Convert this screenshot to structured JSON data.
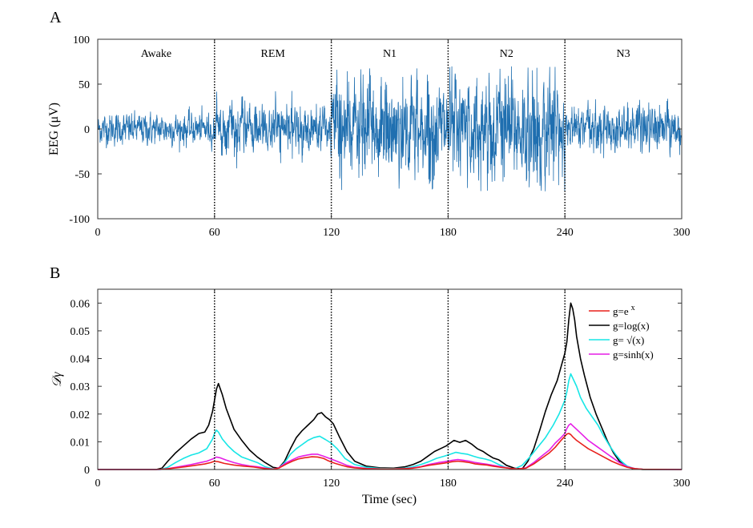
{
  "chart_data": [
    {
      "panel": "A",
      "type": "line",
      "title": "",
      "xlabel": "",
      "ylabel": "EEG (μV)",
      "xlim": [
        0,
        300
      ],
      "ylim": [
        -100,
        100
      ],
      "xticks": [
        0,
        60,
        120,
        180,
        240,
        300
      ],
      "yticks": [
        -100,
        -50,
        0,
        50,
        100
      ],
      "xtick_labels": [
        "0",
        "60",
        "120",
        "180",
        "240",
        "300"
      ],
      "ytick_labels": [
        "-100",
        "-50",
        "0",
        "50",
        "100"
      ],
      "vlines": [
        60,
        120,
        180,
        240
      ],
      "stage_labels": [
        {
          "text": "Awake",
          "x": 30
        },
        {
          "text": "REM",
          "x": 90
        },
        {
          "text": "N1",
          "x": 150
        },
        {
          "text": "N2",
          "x": 210
        },
        {
          "text": "N3",
          "x": 270
        }
      ],
      "series": [
        {
          "name": "EEG",
          "color": "#1f6fb0",
          "segments": [
            {
              "stage": "Awake",
              "x_range": [
                0,
                60
              ],
              "typical_amplitude": 8,
              "peak": 30
            },
            {
              "stage": "REM",
              "x_range": [
                60,
                120
              ],
              "typical_amplitude": 12,
              "peak": 50
            },
            {
              "stage": "N1",
              "x_range": [
                120,
                180
              ],
              "typical_amplitude": 25,
              "peak": 70
            },
            {
              "stage": "N2",
              "x_range": [
                180,
                240
              ],
              "typical_amplitude": 28,
              "peak": 70
            },
            {
              "stage": "N3",
              "x_range": [
                240,
                300
              ],
              "typical_amplitude": 12,
              "peak": 35
            }
          ]
        }
      ]
    },
    {
      "panel": "B",
      "type": "line",
      "title": "",
      "xlabel": "Time (sec)",
      "ylabel": "𝒟γ",
      "xlim": [
        0,
        300
      ],
      "ylim": [
        0,
        0.065
      ],
      "xticks": [
        0,
        60,
        120,
        180,
        240,
        300
      ],
      "yticks": [
        0,
        0.01,
        0.02,
        0.03,
        0.04,
        0.05,
        0.06
      ],
      "xtick_labels": [
        "0",
        "60",
        "120",
        "180",
        "240",
        "300"
      ],
      "ytick_labels": [
        "0",
        "0.01",
        "0.02",
        "0.03",
        "0.04",
        "0.05",
        "0.06"
      ],
      "vlines": [
        60,
        120,
        180,
        240
      ],
      "legend": "top-right",
      "series": [
        {
          "name": "g=e^x",
          "legend_main": "g=e",
          "legend_sup": "x",
          "color": "#e8201c",
          "x": [
            0,
            30,
            35,
            40,
            45,
            50,
            55,
            58,
            60,
            62,
            65,
            70,
            75,
            80,
            85,
            90,
            93,
            97,
            100,
            103,
            106,
            110,
            113,
            116,
            118,
            120,
            122,
            125,
            128,
            132,
            138,
            145,
            152,
            158,
            162,
            165,
            170,
            175,
            178,
            182,
            185,
            188,
            191,
            194,
            197,
            200,
            203,
            207,
            212,
            216,
            220,
            224,
            228,
            232,
            235,
            238,
            240,
            241,
            242,
            243,
            244,
            246,
            249,
            252,
            256,
            260,
            264,
            268,
            272,
            276,
            280,
            300
          ],
          "y": [
            0,
            0,
            0.0002,
            0.0006,
            0.001,
            0.0015,
            0.002,
            0.0025,
            0.003,
            0.0028,
            0.0022,
            0.0016,
            0.0012,
            0.0009,
            0.0004,
            0.0001,
            0.0005,
            0.002,
            0.003,
            0.0038,
            0.0042,
            0.0046,
            0.0045,
            0.004,
            0.0033,
            0.0027,
            0.0022,
            0.0016,
            0.001,
            0.0006,
            0.0003,
            0.0002,
            0.0002,
            0.0003,
            0.0005,
            0.0008,
            0.0015,
            0.002,
            0.0023,
            0.0028,
            0.003,
            0.0028,
            0.0025,
            0.002,
            0.0018,
            0.0016,
            0.0012,
            0.0008,
            0.0004,
            0.0002,
            0.0005,
            0.002,
            0.004,
            0.006,
            0.008,
            0.0105,
            0.012,
            0.0128,
            0.013,
            0.0126,
            0.0118,
            0.0105,
            0.009,
            0.0075,
            0.006,
            0.0045,
            0.003,
            0.0018,
            0.0008,
            0.0003,
            0.0001,
            0
          ]
        },
        {
          "name": "g=log(x)",
          "legend_main": "g=log(x)",
          "legend_sup": "",
          "color": "#000000",
          "x": [
            0,
            30,
            33,
            36,
            40,
            44,
            48,
            52,
            55,
            57,
            59,
            60,
            61,
            62,
            64,
            66,
            70,
            74,
            78,
            82,
            86,
            90,
            93,
            96,
            99,
            102,
            105,
            108,
            111,
            113,
            115,
            117,
            119,
            121,
            124,
            128,
            132,
            138,
            145,
            152,
            158,
            162,
            166,
            170,
            173,
            176,
            179,
            181,
            183,
            186,
            189,
            192,
            195,
            198,
            200,
            203,
            206,
            210,
            214,
            218,
            221,
            224,
            227,
            230,
            233,
            236,
            238,
            240,
            241,
            242,
            243,
            244,
            245,
            246,
            248,
            250,
            253,
            256,
            259,
            262,
            265,
            268,
            271,
            275,
            280,
            300
          ],
          "y": [
            0,
            0,
            0.0005,
            0.003,
            0.006,
            0.0085,
            0.011,
            0.013,
            0.0135,
            0.016,
            0.021,
            0.025,
            0.029,
            0.031,
            0.027,
            0.022,
            0.0145,
            0.0105,
            0.007,
            0.0045,
            0.0025,
            0.0008,
            0.0005,
            0.003,
            0.0075,
            0.0115,
            0.014,
            0.016,
            0.018,
            0.02,
            0.0205,
            0.019,
            0.018,
            0.0165,
            0.012,
            0.0065,
            0.003,
            0.0012,
            0.0006,
            0.0005,
            0.001,
            0.0018,
            0.003,
            0.005,
            0.0065,
            0.0075,
            0.0085,
            0.0095,
            0.0105,
            0.0098,
            0.0105,
            0.0092,
            0.0075,
            0.0065,
            0.0055,
            0.0042,
            0.0035,
            0.0015,
            0.0005,
            0.0002,
            0.003,
            0.0075,
            0.014,
            0.021,
            0.027,
            0.032,
            0.037,
            0.042,
            0.046,
            0.054,
            0.06,
            0.058,
            0.054,
            0.048,
            0.04,
            0.034,
            0.026,
            0.02,
            0.015,
            0.01,
            0.006,
            0.003,
            0.0012,
            0.0003,
            0,
            0
          ]
        },
        {
          "name": "g= √(x)",
          "legend_main": "g= √(x)",
          "legend_sup": "",
          "color": "#17e6e6",
          "x": [
            0,
            32,
            36,
            40,
            44,
            48,
            52,
            56,
            59,
            60,
            61,
            62,
            64,
            67,
            70,
            74,
            78,
            82,
            86,
            90,
            93,
            96,
            99,
            102,
            105,
            108,
            111,
            114,
            117,
            120,
            123,
            127,
            132,
            138,
            145,
            152,
            158,
            162,
            166,
            170,
            174,
            178,
            181,
            184,
            187,
            190,
            193,
            196,
            199,
            202,
            206,
            210,
            214,
            218,
            222,
            226,
            230,
            234,
            237,
            240,
            241,
            242,
            243,
            244,
            246,
            248,
            251,
            254,
            257,
            260,
            263,
            266,
            269,
            272,
            276,
            280,
            300
          ],
          "y": [
            0,
            0,
            0.0008,
            0.0025,
            0.004,
            0.0052,
            0.006,
            0.0075,
            0.011,
            0.013,
            0.0142,
            0.0135,
            0.011,
            0.0085,
            0.0065,
            0.0045,
            0.0035,
            0.0025,
            0.001,
            0.0002,
            0.0005,
            0.0025,
            0.0055,
            0.0075,
            0.009,
            0.0105,
            0.0115,
            0.012,
            0.0108,
            0.0095,
            0.0075,
            0.004,
            0.0018,
            0.0008,
            0.0004,
            0.0003,
            0.0005,
            0.001,
            0.0018,
            0.0028,
            0.004,
            0.0048,
            0.0055,
            0.0062,
            0.0058,
            0.0055,
            0.0048,
            0.0042,
            0.0038,
            0.0032,
            0.0018,
            0.0006,
            0.0002,
            0.0015,
            0.0045,
            0.008,
            0.0115,
            0.016,
            0.02,
            0.025,
            0.028,
            0.032,
            0.0345,
            0.033,
            0.03,
            0.026,
            0.022,
            0.019,
            0.016,
            0.012,
            0.0085,
            0.0055,
            0.003,
            0.0012,
            0.0003,
            0.0001,
            0
          ]
        },
        {
          "name": "g=sinh(x)",
          "legend_main": "g=sinh(x)",
          "legend_sup": "",
          "color": "#e61ee6",
          "x": [
            0,
            32,
            36,
            40,
            44,
            48,
            52,
            56,
            59,
            61,
            63,
            66,
            70,
            74,
            78,
            82,
            86,
            90,
            93,
            97,
            100,
            103,
            106,
            110,
            113,
            116,
            119,
            122,
            125,
            128,
            132,
            138,
            145,
            152,
            158,
            162,
            166,
            170,
            175,
            178,
            182,
            185,
            188,
            191,
            194,
            197,
            200,
            204,
            208,
            212,
            216,
            220,
            224,
            228,
            232,
            235,
            238,
            240,
            241,
            242,
            243,
            244,
            246,
            249,
            252,
            256,
            260,
            264,
            268,
            272,
            276,
            280,
            300
          ],
          "y": [
            0,
            0,
            0.0003,
            0.0008,
            0.0013,
            0.0018,
            0.0024,
            0.003,
            0.0038,
            0.0045,
            0.0042,
            0.0034,
            0.0025,
            0.0018,
            0.0013,
            0.001,
            0.0005,
            0.0001,
            0.0006,
            0.0025,
            0.0035,
            0.0045,
            0.005,
            0.0055,
            0.0055,
            0.0048,
            0.004,
            0.0032,
            0.0024,
            0.0015,
            0.0008,
            0.0004,
            0.0002,
            0.0002,
            0.0003,
            0.0006,
            0.001,
            0.0018,
            0.0025,
            0.0028,
            0.0033,
            0.0036,
            0.0033,
            0.003,
            0.0025,
            0.0022,
            0.0019,
            0.0014,
            0.0009,
            0.0004,
            0.0002,
            0.0006,
            0.0025,
            0.0048,
            0.007,
            0.0095,
            0.0115,
            0.013,
            0.0148,
            0.016,
            0.0165,
            0.0158,
            0.0145,
            0.0125,
            0.0105,
            0.0085,
            0.0065,
            0.0045,
            0.0025,
            0.001,
            0.0003,
            0.0001,
            0
          ]
        }
      ]
    }
  ]
}
